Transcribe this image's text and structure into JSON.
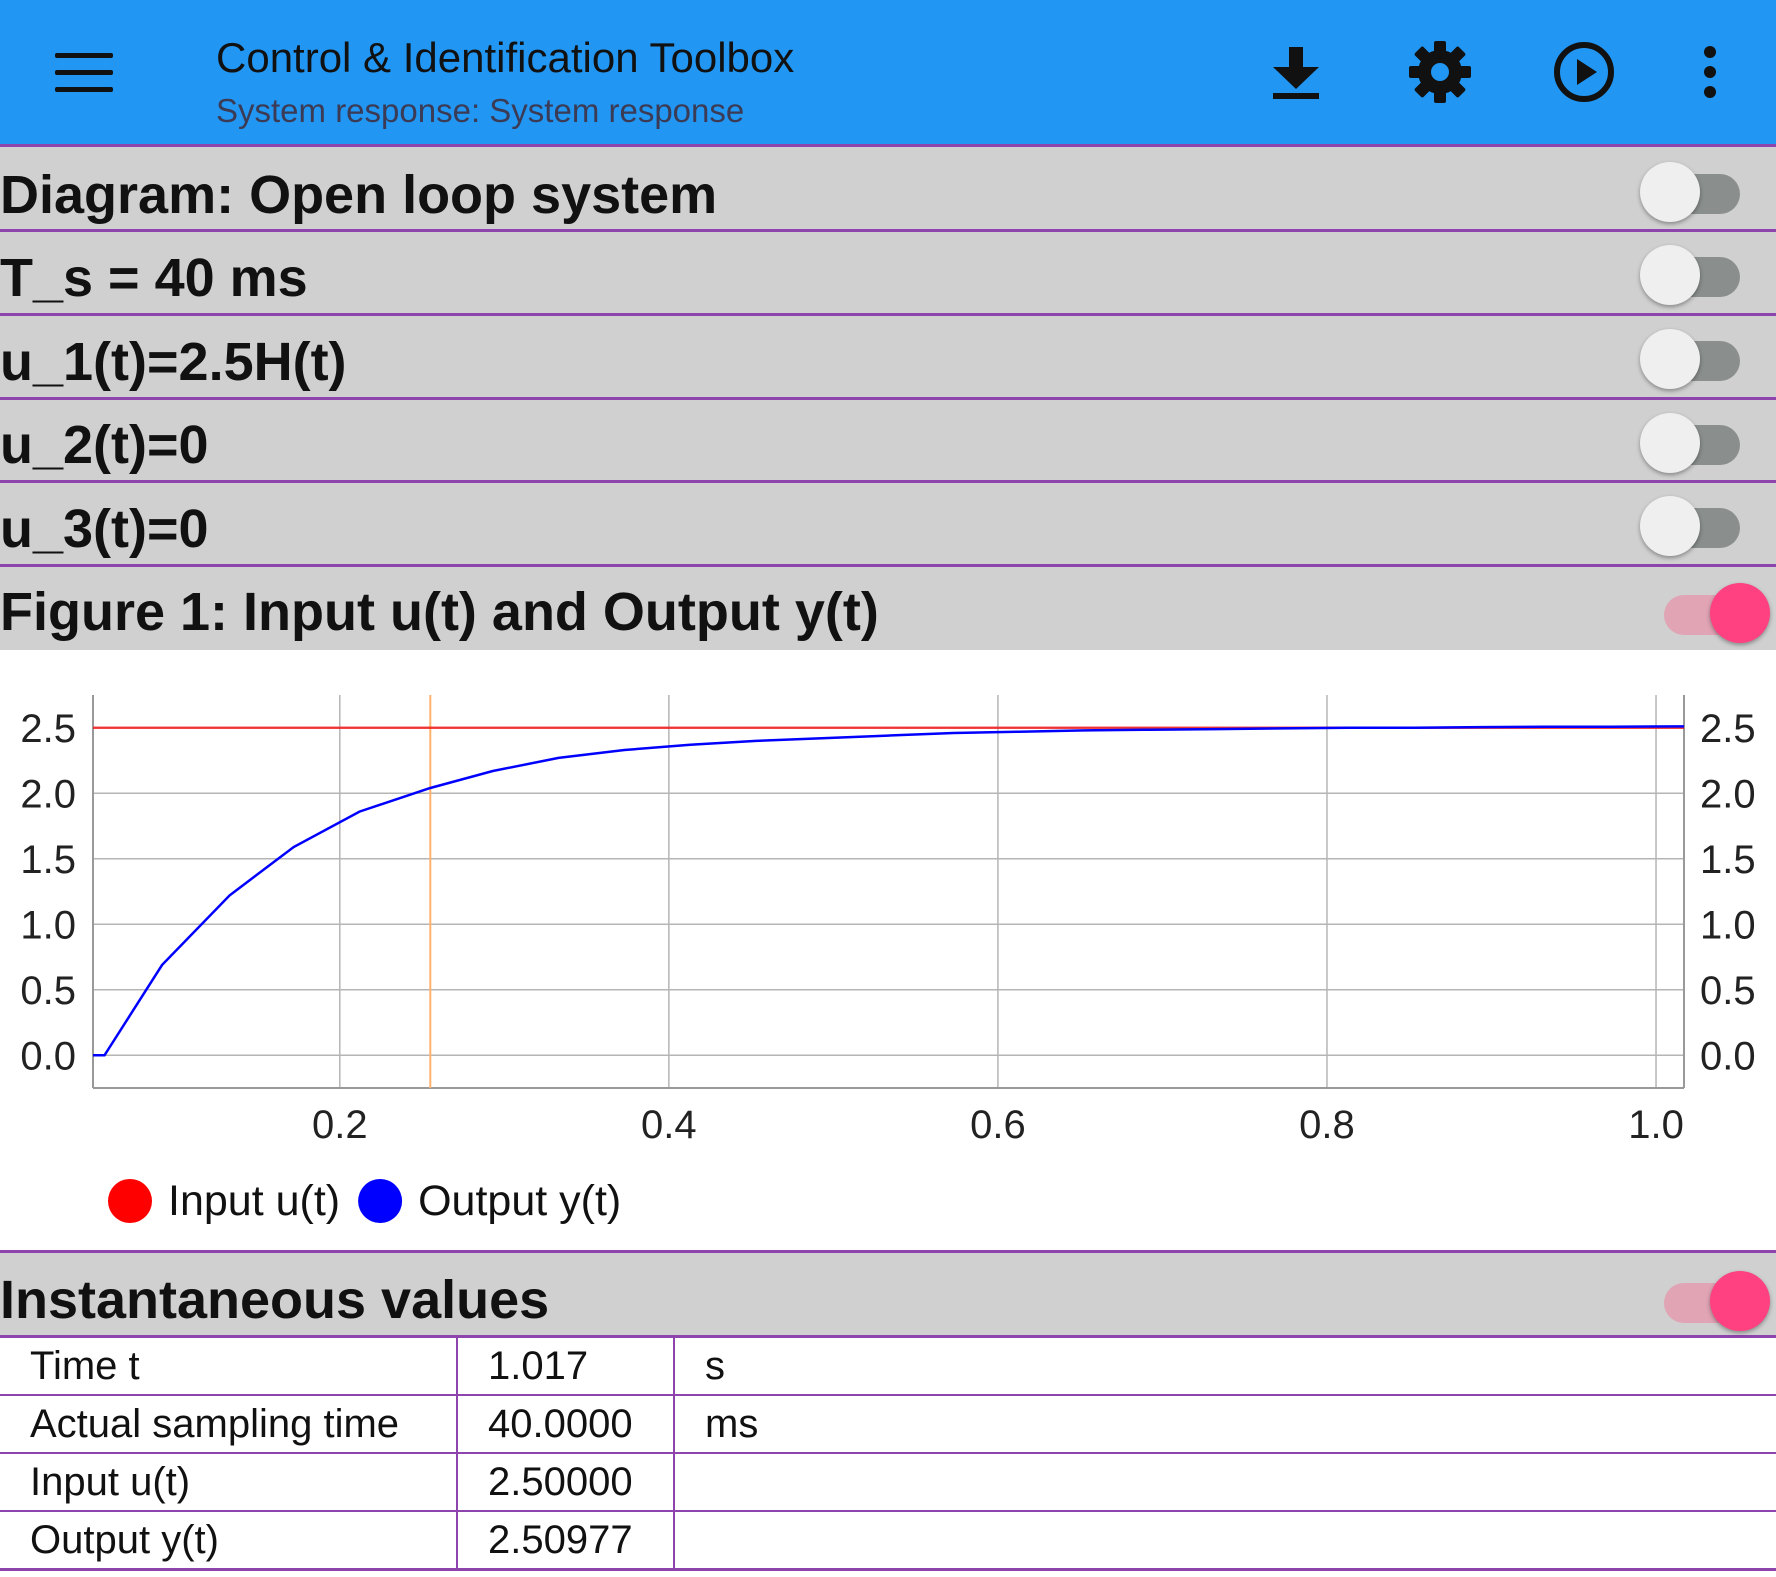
{
  "appbar": {
    "title": "Control & Identification Toolbox",
    "subtitle": "System response: System response",
    "color": "#2196f3",
    "icons": [
      "menu-icon",
      "download-icon",
      "gear-icon",
      "play-circle-icon",
      "more-vertical-icon"
    ]
  },
  "sections": [
    {
      "title": "Diagram: Open loop system",
      "toggle_on": false
    },
    {
      "title": "T_s = 40 ms",
      "toggle_on": false
    },
    {
      "title": "u_1(t)=2.5H(t)",
      "toggle_on": false
    },
    {
      "title": "u_2(t)=0",
      "toggle_on": false
    },
    {
      "title": "u_3(t)=0",
      "toggle_on": false
    },
    {
      "title": "Figure 1: Input u(t) and Output y(t)",
      "toggle_on": true
    }
  ],
  "chart_data": {
    "type": "line",
    "title": "",
    "xlabel": "",
    "ylabel": "",
    "xlim": [
      0.05,
      1.017
    ],
    "ylim": [
      -0.25,
      2.75
    ],
    "x_ticks": [
      "0.2",
      "0.4",
      "0.6",
      "0.8",
      "1.0"
    ],
    "y_ticks": [
      "0.0",
      "0.5",
      "1.0",
      "1.5",
      "2.0",
      "2.5"
    ],
    "grid": true,
    "cursor_x": 0.255,
    "legend_position": "bottom-left",
    "series": [
      {
        "name": "Input u(t)",
        "color": "#ff0000",
        "x": [
          0.05,
          1.017
        ],
        "y": [
          2.5,
          2.5
        ]
      },
      {
        "name": "Output y(t)",
        "color": "#0000ff",
        "x": [
          0.05,
          0.057,
          0.092,
          0.133,
          0.172,
          0.212,
          0.255,
          0.293,
          0.333,
          0.373,
          0.413,
          0.453,
          0.493,
          0.533,
          0.573,
          0.613,
          0.653,
          0.693,
          0.733,
          0.773,
          0.813,
          0.853,
          0.893,
          0.933,
          0.973,
          1.017
        ],
        "y": [
          0.0,
          0.0,
          0.69,
          1.22,
          1.59,
          1.86,
          2.04,
          2.17,
          2.27,
          2.33,
          2.37,
          2.4,
          2.42,
          2.44,
          2.46,
          2.47,
          2.48,
          2.485,
          2.49,
          2.495,
          2.5,
          2.5,
          2.505,
          2.507,
          2.508,
          2.51
        ]
      }
    ]
  },
  "values_section": {
    "title": "Instantaneous values",
    "toggle_on": true
  },
  "values_table": [
    {
      "label": "Time t",
      "value": "1.017",
      "unit": "s"
    },
    {
      "label": "Actual sampling time",
      "value": "40.0000",
      "unit": "ms"
    },
    {
      "label": "Input u(t)",
      "value": "2.50000",
      "unit": ""
    },
    {
      "label": "Output y(t)",
      "value": "2.50977",
      "unit": ""
    }
  ]
}
